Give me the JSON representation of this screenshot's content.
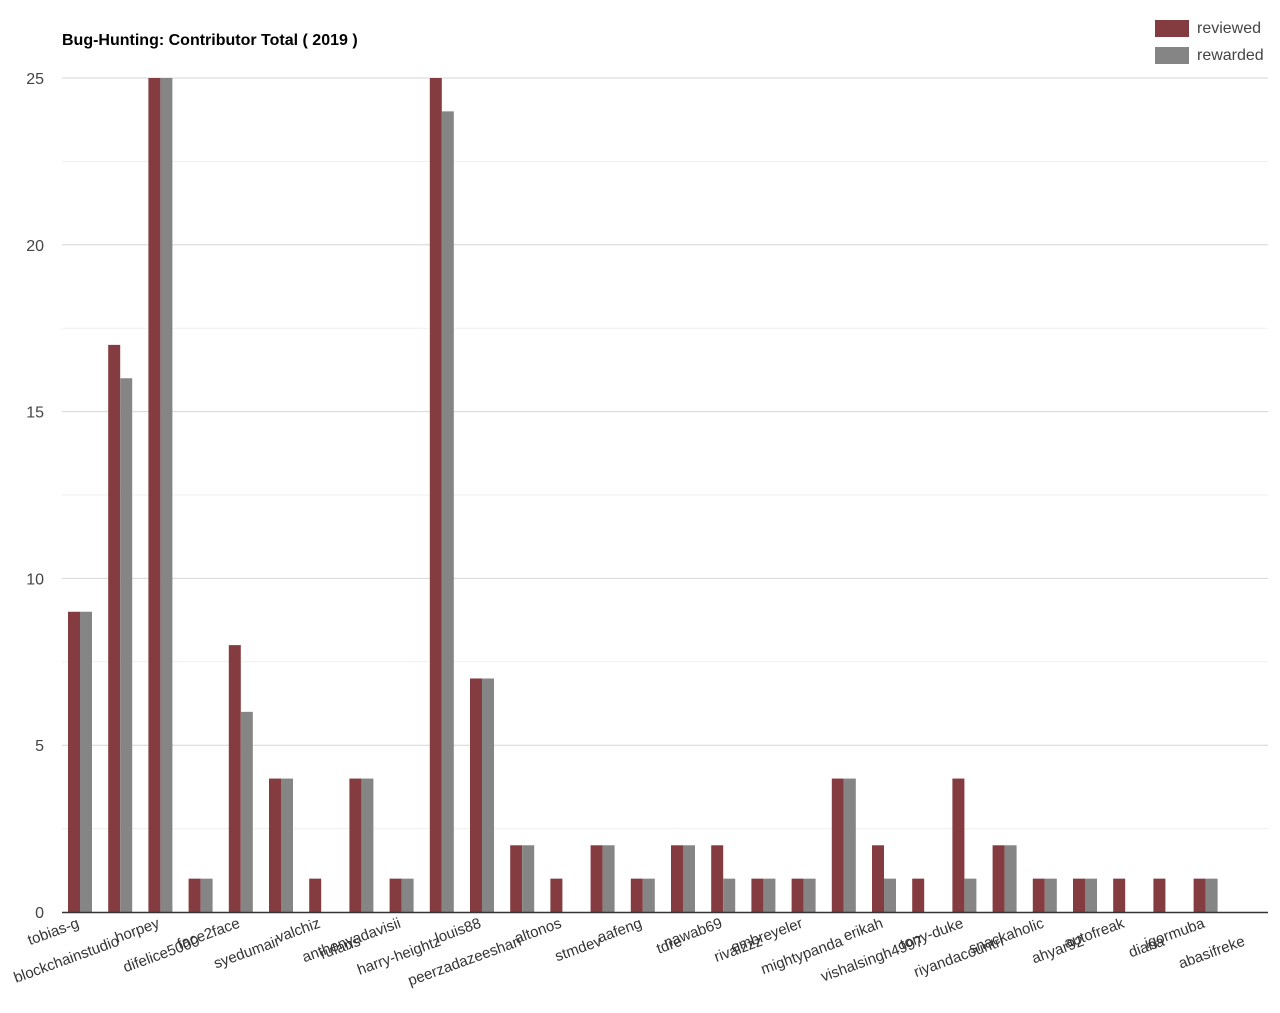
{
  "chart_data": {
    "type": "bar",
    "title": "Bug-Hunting: Contributor Total ( 2019 )",
    "xlabel": "",
    "ylabel": "",
    "ylim": [
      0,
      25
    ],
    "yticks": [
      0,
      5,
      10,
      15,
      20,
      25
    ],
    "grid": true,
    "legend_position": "top-right",
    "categories": [
      "tobias-g",
      "blockchainstudio",
      "horpey",
      "difelice5000",
      "face2face",
      "syedumair",
      "valchiz",
      "rufans",
      "anthonyadavisii",
      "harry-heightz",
      "louis88",
      "peerzadazeeshan",
      "altonos",
      "stmdev",
      "aafeng",
      "tdre",
      "nawab69",
      "rivalzzz",
      "embreyeler",
      "mightypanda",
      "erikah",
      "vishalsingh4997",
      "tony-duke",
      "riyandacountri",
      "snackaholic",
      "ahyar92",
      "autofreak",
      "diana",
      "igormuba",
      "abasifreke"
    ],
    "series": [
      {
        "name": "reviewed",
        "color": "#843c41",
        "values": [
          9,
          17,
          25,
          1,
          8,
          4,
          1,
          4,
          1,
          25,
          7,
          2,
          1,
          2,
          1,
          2,
          2,
          1,
          1,
          4,
          2,
          1,
          4,
          2,
          1,
          1,
          1,
          1,
          1,
          0
        ]
      },
      {
        "name": "rewarded",
        "color": "#858585",
        "values": [
          9,
          16,
          25,
          1,
          6,
          4,
          0,
          4,
          1,
          24,
          7,
          2,
          0,
          2,
          1,
          2,
          1,
          1,
          1,
          4,
          1,
          0,
          1,
          2,
          1,
          1,
          0,
          0,
          1,
          0
        ]
      }
    ]
  }
}
